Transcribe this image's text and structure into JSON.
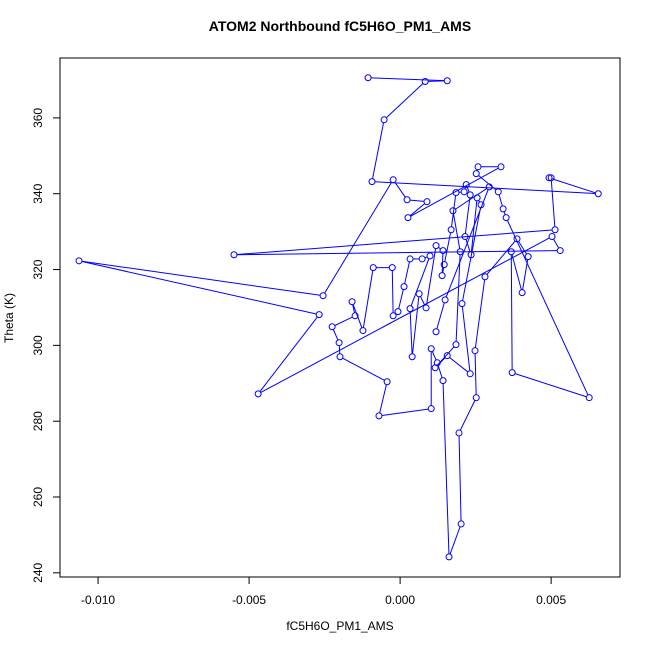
{
  "chart_data": {
    "type": "line",
    "markers": true,
    "title": "ATOM2 Northbound fC5H6O_PM1_AMS",
    "x_label": "fC5H6O_PM1_AMS",
    "y_label": "Theta (K)",
    "color": "#0000ff",
    "xlim": [
      -0.01126,
      0.00728
    ],
    "ylim": [
      238.9,
      375.8
    ],
    "xticks": [
      {
        "value": -0.01,
        "label": "-0.010"
      },
      {
        "value": -0.005,
        "label": "-0.005"
      },
      {
        "value": 0,
        "label": "0.000"
      },
      {
        "value": 0.005,
        "label": "0.005"
      }
    ],
    "yticks": [
      240,
      260,
      280,
      300,
      320,
      340,
      360
    ],
    "x": [
      -0.00106,
      0.00156,
      0.00083,
      -0.00053,
      -0.00093,
      0.00656,
      0.00493,
      0.005,
      0.00513,
      -0.0055,
      0.0053,
      0.00503,
      -0.0047,
      -0.00268,
      -0.01063,
      -0.00255,
      -0.00023,
      0.00023,
      0.00089,
      0.00026,
      0.00334,
      0.00258,
      0.00252,
      0.00325,
      0.00341,
      0.00351,
      0.00626,
      0.00371,
      0.00368,
      0.00404,
      0.00424,
      0.00387,
      0.00281,
      0.00248,
      0.00252,
      0.00195,
      0.00202,
      0.00162,
      0.00142,
      0.00123,
      0.00103,
      0.00103,
      -0.0007,
      -0.00043,
      -0.00199,
      -0.00202,
      -0.00225,
      -0.00149,
      -0.00159,
      -0.00123,
      -0.00089,
      -0.00026,
      -0.00023,
      -7e-05,
      0.00013,
      0.00033,
      0.00073,
      0.00099,
      0.00033,
      0.0004,
      0.00063,
      0.00086,
      0.00119,
      0.00142,
      0.00139,
      0.00146,
      0.00169,
      0.00185,
      0.00212,
      0.00219,
      0.00232,
      0.00215,
      0.00235,
      0.00255,
      0.00268,
      0.00205,
      0.00232,
      0.00156,
      0.00116,
      0.00185,
      0.00199,
      0.00175,
      0.00295,
      0.00149,
      0.00119
    ],
    "values": [
      370.6,
      369.8,
      369.6,
      359.5,
      343.2,
      340.0,
      344.2,
      344.2,
      330.5,
      323.9,
      325.0,
      328.7,
      287.2,
      308.1,
      322.3,
      313.1,
      343.7,
      338.4,
      337.9,
      333.7,
      347.1,
      347.1,
      345.3,
      340.5,
      336.0,
      333.7,
      286.2,
      292.8,
      324.7,
      313.9,
      323.4,
      328.1,
      318.1,
      298.6,
      286.2,
      276.9,
      252.9,
      244.2,
      290.7,
      295.4,
      299.1,
      283.3,
      281.4,
      290.4,
      297.0,
      300.7,
      304.9,
      307.8,
      311.5,
      303.9,
      320.5,
      320.5,
      307.8,
      308.9,
      315.5,
      322.8,
      322.8,
      323.6,
      309.7,
      297.0,
      313.6,
      309.9,
      326.3,
      325.0,
      318.4,
      321.3,
      330.5,
      340.3,
      340.5,
      342.4,
      339.7,
      328.7,
      323.9,
      338.9,
      337.1,
      311.0,
      292.5,
      297.3,
      294.1,
      300.2,
      324.7,
      335.5,
      341.8,
      312.0,
      303.6
    ]
  }
}
